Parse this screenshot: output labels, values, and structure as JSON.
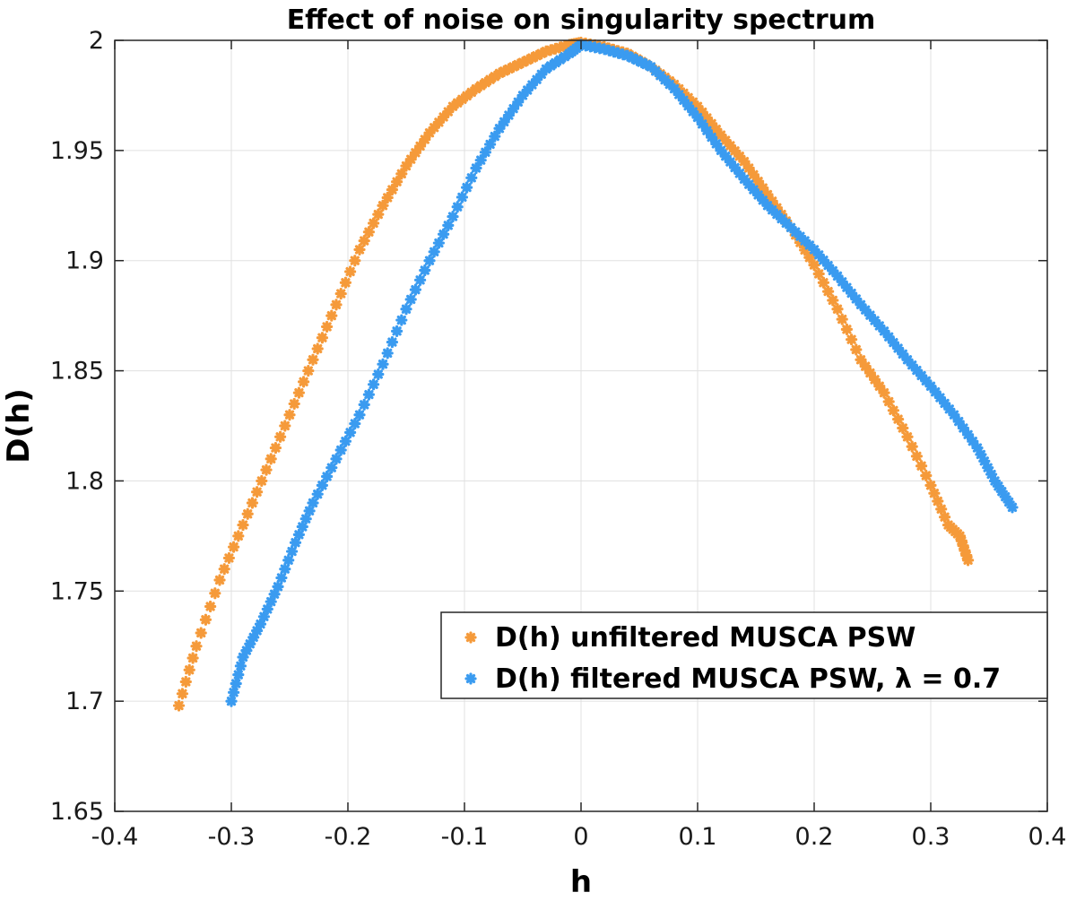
{
  "chart_data": {
    "type": "scatter",
    "title": "Effect of noise on singularity spectrum",
    "xlabel": "h",
    "ylabel": "D(h)",
    "xlim": [
      -0.4,
      0.4
    ],
    "ylim": [
      1.65,
      2.0
    ],
    "xticks": [
      -0.4,
      -0.3,
      -0.2,
      -0.1,
      0,
      0.1,
      0.2,
      0.3,
      0.4
    ],
    "xtick_labels": [
      "-0.4",
      "-0.3",
      "-0.2",
      "-0.1",
      "0",
      "0.1",
      "0.2",
      "0.3",
      "0.4"
    ],
    "yticks": [
      1.65,
      1.7,
      1.75,
      1.8,
      1.85,
      1.9,
      1.95,
      2.0
    ],
    "ytick_labels": [
      "1.65",
      "1.7",
      "1.75",
      "1.8",
      "1.85",
      "1.9",
      "1.95",
      "2"
    ],
    "grid": true,
    "legend_position": "bottom-right",
    "series": [
      {
        "name": "D(h) unfiltered MUSCA PSW",
        "color": "#F59A3A",
        "marker": "asterisk",
        "anchors": [
          [
            -0.345,
            1.698
          ],
          [
            -0.33,
            1.725
          ],
          [
            -0.31,
            1.755
          ],
          [
            -0.29,
            1.78
          ],
          [
            -0.27,
            1.805
          ],
          [
            -0.25,
            1.83
          ],
          [
            -0.23,
            1.855
          ],
          [
            -0.21,
            1.88
          ],
          [
            -0.19,
            1.905
          ],
          [
            -0.17,
            1.925
          ],
          [
            -0.15,
            1.943
          ],
          [
            -0.13,
            1.958
          ],
          [
            -0.11,
            1.97
          ],
          [
            -0.09,
            1.978
          ],
          [
            -0.07,
            1.985
          ],
          [
            -0.05,
            1.99
          ],
          [
            -0.03,
            1.995
          ],
          [
            -0.01,
            1.998
          ],
          [
            0.0,
            1.999
          ],
          [
            0.02,
            1.997
          ],
          [
            0.04,
            1.994
          ],
          [
            0.06,
            1.988
          ],
          [
            0.08,
            1.98
          ],
          [
            0.1,
            1.97
          ],
          [
            0.12,
            1.957
          ],
          [
            0.14,
            1.945
          ],
          [
            0.16,
            1.93
          ],
          [
            0.18,
            1.915
          ],
          [
            0.2,
            1.898
          ],
          [
            0.22,
            1.878
          ],
          [
            0.24,
            1.855
          ],
          [
            0.26,
            1.84
          ],
          [
            0.28,
            1.82
          ],
          [
            0.3,
            1.798
          ],
          [
            0.315,
            1.78
          ],
          [
            0.325,
            1.775
          ],
          [
            0.332,
            1.764
          ]
        ]
      },
      {
        "name": "D(h) filtered MUSCA PSW, λ = 0.7",
        "color": "#3A9BF0",
        "marker": "asterisk",
        "anchors": [
          [
            -0.3,
            1.7
          ],
          [
            -0.29,
            1.72
          ],
          [
            -0.275,
            1.735
          ],
          [
            -0.26,
            1.752
          ],
          [
            -0.245,
            1.772
          ],
          [
            -0.23,
            1.79
          ],
          [
            -0.21,
            1.81
          ],
          [
            -0.19,
            1.83
          ],
          [
            -0.17,
            1.853
          ],
          [
            -0.15,
            1.878
          ],
          [
            -0.13,
            1.9
          ],
          [
            -0.11,
            1.92
          ],
          [
            -0.09,
            1.942
          ],
          [
            -0.07,
            1.96
          ],
          [
            -0.05,
            1.975
          ],
          [
            -0.03,
            1.987
          ],
          [
            -0.01,
            1.994
          ],
          [
            0.0,
            1.998
          ],
          [
            0.02,
            1.996
          ],
          [
            0.04,
            1.993
          ],
          [
            0.06,
            1.988
          ],
          [
            0.08,
            1.978
          ],
          [
            0.1,
            1.965
          ],
          [
            0.12,
            1.95
          ],
          [
            0.14,
            1.937
          ],
          [
            0.16,
            1.925
          ],
          [
            0.18,
            1.915
          ],
          [
            0.2,
            1.905
          ],
          [
            0.22,
            1.893
          ],
          [
            0.24,
            1.88
          ],
          [
            0.26,
            1.868
          ],
          [
            0.28,
            1.855
          ],
          [
            0.3,
            1.843
          ],
          [
            0.32,
            1.83
          ],
          [
            0.34,
            1.815
          ],
          [
            0.355,
            1.8
          ],
          [
            0.37,
            1.788
          ]
        ]
      }
    ]
  }
}
